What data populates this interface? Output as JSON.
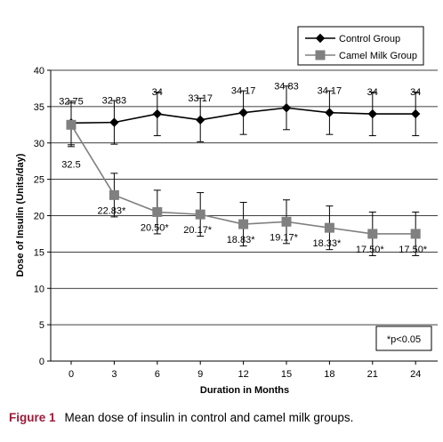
{
  "chart_data": {
    "type": "line",
    "xlabel": "Duration in Months",
    "ylabel": "Dose of Insulin (Units/day)",
    "x": [
      0,
      3,
      6,
      9,
      12,
      15,
      18,
      21,
      24
    ],
    "xticks": [
      "0",
      "3",
      "6",
      "9",
      "12",
      "15",
      "18",
      "21",
      "24"
    ],
    "ylim": [
      0,
      40
    ],
    "yticks": [
      "0",
      "5",
      "10",
      "15",
      "20",
      "25",
      "30",
      "35",
      "40"
    ],
    "grid": "horizontal",
    "legend": "top-right",
    "series": [
      {
        "name": "Control Group",
        "marker": "diamond",
        "color": "#000000",
        "values": [
          32.75,
          32.83,
          34,
          33.17,
          34.17,
          34.83,
          34.17,
          34,
          34
        ],
        "error": [
          3,
          3,
          3,
          3,
          3,
          3,
          3,
          3,
          3
        ],
        "labels": [
          "32.75",
          "32.83",
          "34",
          "33.17",
          "34.17",
          "34.83",
          "34.17",
          "34",
          "34"
        ]
      },
      {
        "name": "Camel Milk Group",
        "marker": "square",
        "color": "#808080",
        "values": [
          32.5,
          22.83,
          20.5,
          20.17,
          18.83,
          19.17,
          18.33,
          17.5,
          17.5
        ],
        "error": [
          3,
          3,
          3,
          3,
          3,
          3,
          3,
          3,
          3
        ],
        "labels": [
          "32.5",
          "22.83*",
          "20.50*",
          "20.17*",
          "18.83*",
          "19.17*",
          "18.33*",
          "17.50*",
          "17.50*"
        ]
      }
    ],
    "note": "*p<0.05"
  },
  "caption": {
    "figure_label": "Figure 1",
    "text": "Mean dose of insulin in control and camel milk groups."
  }
}
